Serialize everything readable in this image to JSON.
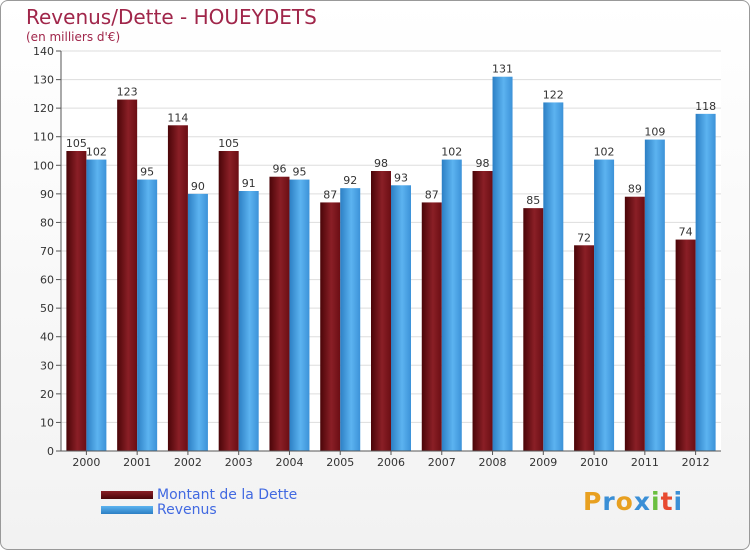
{
  "title": "Revenus/Dette - HOUEYDETS",
  "subtitle": "(en milliers d'€)",
  "legend": [
    {
      "label": "Montant de la Dette",
      "color": "#6b0e14"
    },
    {
      "label": "Revenus",
      "color": "#4aa3e8"
    }
  ],
  "logo": {
    "letters": [
      "P",
      "r",
      "o",
      "x",
      "i",
      "t",
      "i"
    ],
    "colors": [
      "#e8a020",
      "#3a8fd6",
      "#e8a020",
      "#3a8fd6",
      "#6abf40",
      "#e84a30",
      "#3a8fd6"
    ]
  },
  "chart_data": {
    "type": "bar",
    "title": "Revenus/Dette - HOUEYDETS",
    "ylabel": "(en milliers d'€)",
    "xlabel": "",
    "categories": [
      "2000",
      "2001",
      "2002",
      "2003",
      "2004",
      "2005",
      "2006",
      "2007",
      "2008",
      "2009",
      "2010",
      "2011",
      "2012"
    ],
    "series": [
      {
        "name": "Montant de la Dette",
        "values": [
          105,
          123,
          114,
          105,
          96,
          87,
          98,
          87,
          98,
          85,
          72,
          89,
          74
        ]
      },
      {
        "name": "Revenus",
        "values": [
          102,
          95,
          90,
          91,
          95,
          92,
          93,
          102,
          131,
          122,
          102,
          109,
          118
        ]
      }
    ],
    "ylim": [
      0,
      140
    ],
    "yticks": [
      0,
      10,
      20,
      30,
      40,
      50,
      60,
      70,
      80,
      90,
      100,
      110,
      120,
      130,
      140
    ],
    "grid": true,
    "legend_position": "bottom-left"
  }
}
